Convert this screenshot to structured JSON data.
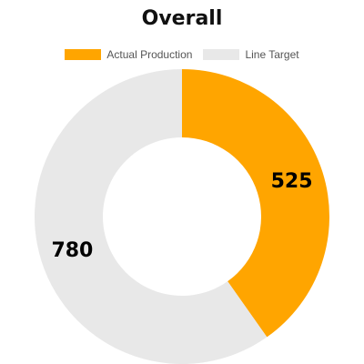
{
  "chart_data": {
    "type": "pie",
    "title": "Overall",
    "legend_position": "top",
    "series": [
      {
        "name": "Actual Production",
        "value": 525,
        "color": "#FFA500"
      },
      {
        "name": "Line Target",
        "value": 780,
        "color": "#E8E8E8"
      }
    ],
    "labels": [
      "525",
      "780"
    ]
  }
}
